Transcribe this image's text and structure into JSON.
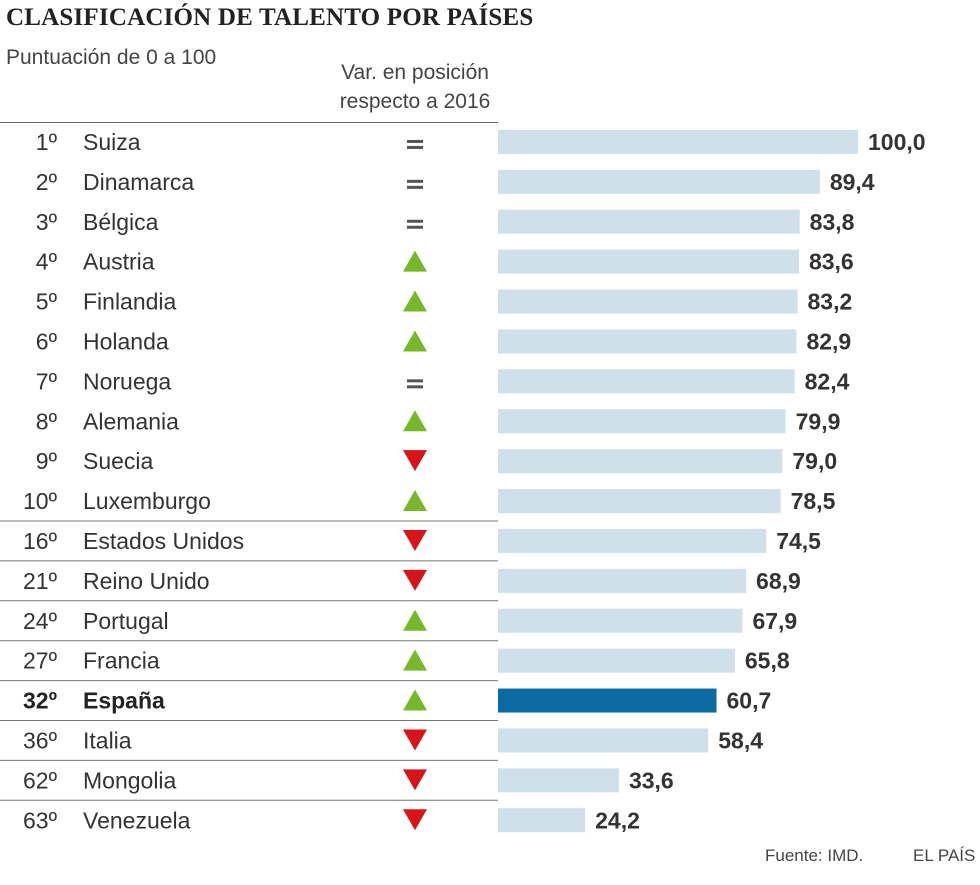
{
  "header": {
    "title": "CLASIFICACIÓN DE TALENTO POR PAÍSES",
    "subtitle": "Puntuación de 0 a 100",
    "var_label_line1": "Var. en posición",
    "var_label_line2": "respecto a 2016"
  },
  "footer": {
    "source": "Fuente: IMD.",
    "brand": "EL PAÍS"
  },
  "colors": {
    "bar": "#cfe0ea",
    "bar_highlight": "#0a6aa1",
    "up": "#76b82a",
    "down": "#d7141a",
    "rule": "#777777"
  },
  "chart_data": {
    "type": "bar",
    "orientation": "horizontal",
    "title": "CLASIFICACIÓN DE TALENTO POR PAÍSES",
    "subtitle": "Puntuación de 0 a 100",
    "xlim": [
      0,
      100
    ],
    "grid": false,
    "highlight": "España",
    "categories": [
      "Suiza",
      "Dinamarca",
      "Bélgica",
      "Austria",
      "Finlandia",
      "Holanda",
      "Noruega",
      "Alemania",
      "Suecia",
      "Luxemburgo",
      "Estados Unidos",
      "Reino Unido",
      "Portugal",
      "Francia",
      "España",
      "Italia",
      "Mongolia",
      "Venezuela"
    ],
    "ranks": [
      "1º",
      "2º",
      "3º",
      "4º",
      "5º",
      "6º",
      "7º",
      "8º",
      "9º",
      "10º",
      "16º",
      "21º",
      "24º",
      "27º",
      "32º",
      "36º",
      "62º",
      "63º"
    ],
    "values": [
      100.0,
      89.4,
      83.8,
      83.6,
      83.2,
      82.9,
      82.4,
      79.9,
      79.0,
      78.5,
      74.5,
      68.9,
      67.9,
      65.8,
      60.7,
      58.4,
      33.6,
      24.2
    ],
    "value_labels": [
      "100,0",
      "89,4",
      "83,8",
      "83,6",
      "83,2",
      "82,9",
      "82,4",
      "79,9",
      "79,0",
      "78,5",
      "74,5",
      "68,9",
      "67,9",
      "65,8",
      "60,7",
      "58,4",
      "33,6",
      "24,2"
    ],
    "change_vs_2016": [
      "same",
      "same",
      "same",
      "up",
      "up",
      "up",
      "same",
      "up",
      "down",
      "up",
      "down",
      "down",
      "up",
      "up",
      "up",
      "down",
      "down",
      "down"
    ]
  }
}
